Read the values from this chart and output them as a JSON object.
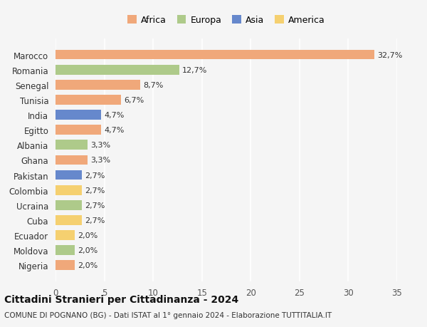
{
  "countries": [
    "Nigeria",
    "Moldova",
    "Ecuador",
    "Cuba",
    "Ucraina",
    "Colombia",
    "Pakistan",
    "Ghana",
    "Albania",
    "Egitto",
    "India",
    "Tunisia",
    "Senegal",
    "Romania",
    "Marocco"
  ],
  "values": [
    2.0,
    2.0,
    2.0,
    2.7,
    2.7,
    2.7,
    2.7,
    3.3,
    3.3,
    4.7,
    4.7,
    6.7,
    8.7,
    12.7,
    32.7
  ],
  "continents": [
    "Africa",
    "Europa",
    "America",
    "America",
    "Europa",
    "America",
    "Asia",
    "Africa",
    "Europa",
    "Africa",
    "Asia",
    "Africa",
    "Africa",
    "Europa",
    "Africa"
  ],
  "colors": {
    "Africa": "#F0A87A",
    "Europa": "#AECA8A",
    "Asia": "#6688CC",
    "America": "#F5D070"
  },
  "legend_order": [
    "Africa",
    "Europa",
    "Asia",
    "America"
  ],
  "title": "Cittadini Stranieri per Cittadinanza - 2024",
  "subtitle": "COMUNE DI POGNANO (BG) - Dati ISTAT al 1° gennaio 2024 - Elaborazione TUTTITALIA.IT",
  "xlim": [
    0,
    35
  ],
  "xticks": [
    0,
    5,
    10,
    15,
    20,
    25,
    30,
    35
  ],
  "background_color": "#F5F5F5",
  "bar_height": 0.65
}
